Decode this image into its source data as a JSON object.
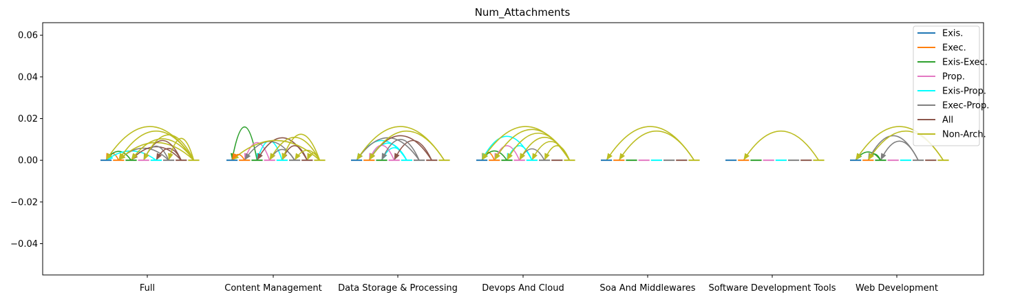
{
  "chart_data": {
    "type": "arc",
    "title": "Num_Attachments",
    "xlabel": "",
    "ylabel": "",
    "ylim": [
      -0.055,
      0.066
    ],
    "yticks": [
      "0.06",
      "0.04",
      "0.02",
      "0.00",
      "−0.02",
      "−0.04"
    ],
    "ytick_values": [
      0.06,
      0.04,
      0.02,
      0.0,
      -0.02,
      -0.04
    ],
    "categories": [
      "Full",
      "Content Management",
      "Data Storage & Processing",
      "Devops And Cloud",
      "Soa And Middlewares",
      "Software Development Tools",
      "Web Development"
    ],
    "legend_position": "upper right",
    "series": [
      {
        "name": "Exis.",
        "color": "#1f77b4"
      },
      {
        "name": "Exec.",
        "color": "#ff7f0e"
      },
      {
        "name": "Exis-Exec.",
        "color": "#2ca02c"
      },
      {
        "name": "Prop.",
        "color": "#e377c2"
      },
      {
        "name": "Exis-Prop.",
        "color": "#00ffff"
      },
      {
        "name": "Exec-Prop.",
        "color": "#7f7f7f"
      },
      {
        "name": "All",
        "color": "#8c564b"
      },
      {
        "name": "Non-Arch.",
        "color": "#bcbd22"
      }
    ],
    "arcs": [
      [
        [
          0,
          1,
          0.0033
        ],
        [
          0,
          2,
          0.0043
        ],
        [
          0,
          4,
          0.0045
        ],
        [
          1,
          5,
          0.0058
        ],
        [
          2,
          6,
          0.0065
        ],
        [
          3,
          5,
          0.0068
        ],
        [
          1,
          7,
          0.0085
        ],
        [
          2,
          7,
          0.0103
        ],
        [
          3,
          6,
          0.0095
        ],
        [
          4,
          6,
          0.0057
        ],
        [
          0,
          7,
          0.0162
        ],
        [
          1,
          7,
          0.014
        ],
        [
          3,
          7,
          0.0122
        ],
        [
          5,
          7,
          0.0105
        ]
      ],
      [
        [
          0,
          2,
          0.016
        ],
        [
          1,
          3,
          0.0085
        ],
        [
          2,
          4,
          0.0093
        ],
        [
          3,
          5,
          0.0052
        ],
        [
          1,
          5,
          0.009
        ],
        [
          2,
          6,
          0.0108
        ],
        [
          3,
          7,
          0.011
        ],
        [
          4,
          6,
          0.007
        ],
        [
          5,
          7,
          0.0048
        ],
        [
          0,
          7,
          0.0095
        ],
        [
          6,
          7,
          0.0035
        ],
        [
          0,
          1,
          0.0028
        ],
        [
          4,
          7,
          0.0125
        ]
      ],
      [
        [
          0,
          4,
          0.0095
        ],
        [
          1,
          4,
          0.0082
        ],
        [
          2,
          4,
          0.006
        ],
        [
          1,
          3,
          0.0072
        ],
        [
          3,
          6,
          0.0095
        ],
        [
          2,
          5,
          0.01
        ],
        [
          0,
          5,
          0.0108
        ],
        [
          1,
          6,
          0.0118
        ],
        [
          0,
          7,
          0.0162
        ],
        [
          1,
          7,
          0.014
        ]
      ],
      [
        [
          0,
          1,
          0.0038
        ],
        [
          0,
          2,
          0.0045
        ],
        [
          1,
          3,
          0.007
        ],
        [
          0,
          4,
          0.0115
        ],
        [
          2,
          4,
          0.007
        ],
        [
          3,
          5,
          0.0055
        ],
        [
          0,
          7,
          0.0162
        ],
        [
          1,
          7,
          0.0148
        ],
        [
          2,
          7,
          0.013
        ],
        [
          3,
          7,
          0.011
        ],
        [
          4,
          7,
          0.009
        ],
        [
          5,
          7,
          0.007
        ]
      ],
      [
        [
          0,
          7,
          0.0162
        ],
        [
          1,
          7,
          0.014
        ]
      ],
      [
        [
          1,
          7,
          0.014
        ]
      ],
      [
        [
          0,
          2,
          0.004
        ],
        [
          1,
          2,
          0.003
        ],
        [
          1,
          5,
          0.0118
        ],
        [
          2,
          5,
          0.0092
        ],
        [
          0,
          7,
          0.0162
        ],
        [
          1,
          7,
          0.014
        ]
      ]
    ]
  }
}
